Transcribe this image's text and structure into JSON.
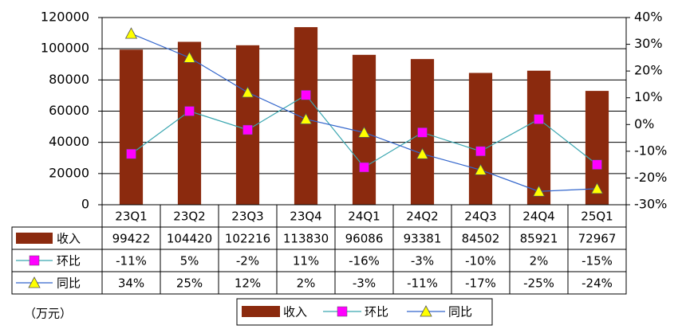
{
  "chart_data": {
    "type": "bar",
    "categories": [
      "23Q1",
      "23Q2",
      "23Q3",
      "23Q4",
      "24Q1",
      "24Q2",
      "24Q3",
      "24Q4",
      "25Q1"
    ],
    "series": [
      {
        "name": "收入",
        "type": "bar",
        "color": "#8b2a0e",
        "values": [
          99422,
          104420,
          102216,
          113830,
          96086,
          93381,
          84502,
          85921,
          72967
        ]
      },
      {
        "name": "环比",
        "type": "line",
        "axis": "y2",
        "marker": "square",
        "color": "#ff00ff",
        "line_color": "#3aa6b0",
        "values": [
          -11,
          5,
          -2,
          11,
          -16,
          -3,
          -10,
          2,
          -15
        ],
        "value_labels": [
          "-11%",
          "5%",
          "-2%",
          "11%",
          "-16%",
          "-3%",
          "-10%",
          "2%",
          "-15%"
        ]
      },
      {
        "name": "同比",
        "type": "line",
        "axis": "y2",
        "marker": "triangle",
        "color": "#ffff00",
        "line_color": "#3366cc",
        "values": [
          34,
          25,
          12,
          2,
          -3,
          -11,
          -17,
          -25,
          -24
        ],
        "value_labels": [
          "34%",
          "25%",
          "12%",
          "2%",
          "-3%",
          "-11%",
          "-17%",
          "-25%",
          "-24%"
        ]
      }
    ],
    "ylim": [
      0,
      120000
    ],
    "yticks": [
      0,
      20000,
      40000,
      60000,
      80000,
      100000,
      120000
    ],
    "y2lim": [
      -30,
      40
    ],
    "y2ticks": [
      {
        "value": -30,
        "label": "-30%"
      },
      {
        "value": -20,
        "label": "-20%"
      },
      {
        "value": -10,
        "label": "-10%"
      },
      {
        "value": 0,
        "label": "0%"
      },
      {
        "value": 10,
        "label": "10%"
      },
      {
        "value": 20,
        "label": "20%"
      },
      {
        "value": 30,
        "label": "30%"
      },
      {
        "value": 40,
        "label": "40%"
      }
    ],
    "grid": true,
    "unit_label": "（万元）"
  }
}
